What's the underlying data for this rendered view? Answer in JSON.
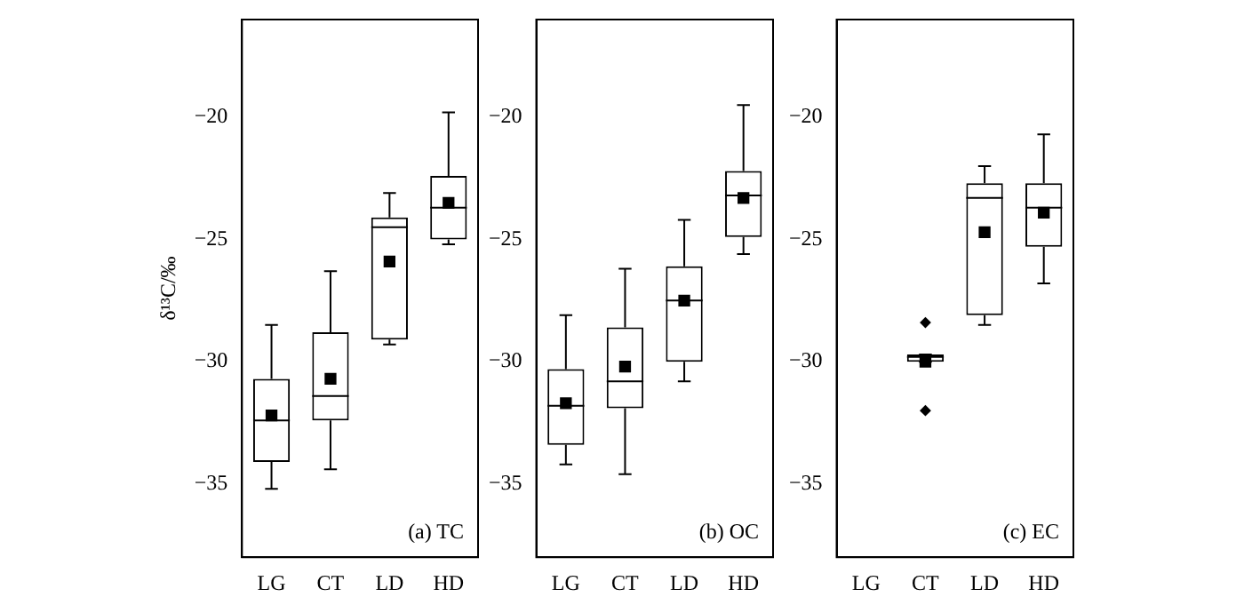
{
  "chart_data": [
    {
      "type": "box",
      "categories": [
        "LG",
        "CT",
        "LD",
        "HD"
      ],
      "ylabel": "δ¹³C/‰",
      "ylim": [
        -38,
        -16
      ],
      "yticks": [
        -35,
        -30,
        -25,
        -20
      ],
      "grid": false,
      "annotations": [
        "(a) TC"
      ],
      "boxes": [
        {
          "low": -35.2,
          "q1": -34.1,
          "median": -32.4,
          "q3": -30.7,
          "high": -28.5,
          "mean": -32.2
        },
        {
          "low": -34.4,
          "q1": -32.4,
          "median": -31.4,
          "q3": -28.8,
          "high": -26.3,
          "mean": -30.7
        },
        {
          "low": -29.3,
          "q1": -29.1,
          "median": -24.5,
          "q3": -24.1,
          "high": -23.1,
          "mean": -25.9
        },
        {
          "low": -25.2,
          "q1": -25.0,
          "median": -23.7,
          "q3": -22.4,
          "high": -19.8,
          "mean": -23.5
        }
      ]
    },
    {
      "type": "box",
      "categories": [
        "LG",
        "CT",
        "LD",
        "HD"
      ],
      "ylim": [
        -38,
        -16
      ],
      "yticks": [
        -35,
        -30,
        -25,
        -20
      ],
      "grid": false,
      "annotations": [
        "(b) OC"
      ],
      "boxes": [
        {
          "low": -34.2,
          "q1": -33.4,
          "median": -31.8,
          "q3": -30.3,
          "high": -28.1,
          "mean": -31.7
        },
        {
          "low": -34.6,
          "q1": -31.9,
          "median": -30.8,
          "q3": -28.6,
          "high": -26.2,
          "mean": -30.2
        },
        {
          "low": -30.8,
          "q1": -30.0,
          "median": -27.5,
          "q3": -26.1,
          "high": -24.2,
          "mean": -27.5
        },
        {
          "low": -25.6,
          "q1": -24.9,
          "median": -23.2,
          "q3": -22.2,
          "high": -19.5,
          "mean": -23.3
        }
      ]
    },
    {
      "type": "box",
      "categories": [
        "LG",
        "CT",
        "LD",
        "HD"
      ],
      "ylim": [
        -38,
        -16
      ],
      "yticks": [
        -35,
        -30,
        -25,
        -20
      ],
      "grid": false,
      "annotations": [
        "(c) EC"
      ],
      "boxes": [
        null,
        {
          "low": -30.0,
          "q1": -30.0,
          "median": -29.8,
          "q3": -29.7,
          "high": -29.7,
          "mean": -30.0,
          "outliers": [
            -28.4,
            -32.0
          ]
        },
        {
          "low": -28.5,
          "q1": -28.1,
          "median": -23.3,
          "q3": -22.7,
          "high": -22.0,
          "mean": -24.7
        },
        {
          "low": -26.8,
          "q1": -25.3,
          "median": -23.7,
          "q3": -22.7,
          "high": -20.7,
          "mean": -23.9
        }
      ]
    }
  ]
}
